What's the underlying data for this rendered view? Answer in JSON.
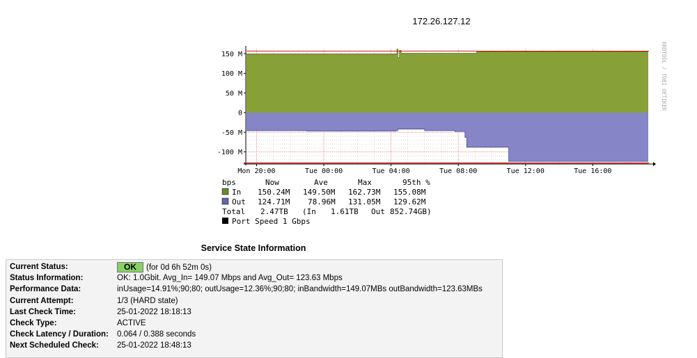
{
  "chart_data": {
    "type": "area",
    "title": "172.26.127.12",
    "watermark": "RRDTOOL / TOBI OETIKER",
    "ylabel": "",
    "y_ticks": [
      150,
      100,
      50,
      0,
      -50,
      -100
    ],
    "y_tick_labels": [
      "150 M",
      "100 M",
      "50 M",
      "0",
      "-50 M",
      "-100 M"
    ],
    "ylim": [
      -130,
      160
    ],
    "x_ticks": [
      "Mon 20:00",
      "Tue 00:00",
      "Tue 04:00",
      "Tue 08:00",
      "Tue 12:00",
      "Tue 16:00"
    ],
    "x_tick_hours": [
      20,
      24,
      28,
      32,
      36,
      40
    ],
    "xlim_hours": [
      19.4,
      43.3
    ],
    "grid": true,
    "colors": {
      "in": "#88a038",
      "out": "#8585c8",
      "max_line": "#cc0000",
      "axis": "#000000"
    },
    "series": [
      {
        "name": "In",
        "x_hours": [
          19.4,
          23.0,
          27.0,
          28.3,
          28.35,
          28.4,
          28.5,
          28.6,
          33.0,
          33.1,
          43.3
        ],
        "values": [
          149,
          149,
          149,
          149,
          162,
          140,
          158,
          151,
          151,
          155,
          155
        ]
      },
      {
        "name": "Out",
        "x_hours": [
          19.4,
          23.0,
          28.3,
          28.4,
          30.0,
          31.8,
          32.4,
          32.5,
          34.0,
          34.9,
          35.0,
          43.3
        ],
        "values": [
          -46,
          -47,
          -46,
          -42,
          -46,
          -48,
          -63,
          -88,
          -88,
          -88,
          -124,
          -124
        ]
      }
    ],
    "legend": {
      "unit": "bps",
      "headers": [
        "Now",
        "Ave",
        "Max",
        "95th %"
      ],
      "rows": [
        {
          "label": "In",
          "color": "#6a8b2f",
          "values": [
            "150.24M",
            "149.50M",
            "162.73M",
            "155.08M"
          ]
        },
        {
          "label": "Out",
          "color": "#6666a8",
          "values": [
            "124.71M",
            "78.96M",
            "131.05M",
            "129.62M"
          ]
        }
      ],
      "total": {
        "label": "Total",
        "value": "2.47TB",
        "in_label": "(In",
        "in_value": "1.61TB",
        "out_label": "Out",
        "out_value": "852.74GB)"
      },
      "port_speed": "Port Speed 1 Gbps"
    }
  },
  "service_state": {
    "title": "Service State Information",
    "rows": [
      {
        "key": "Current Status:",
        "badge": "OK",
        "value": "(for 0d 6h 52m 0s)"
      },
      {
        "key": "Status Information:",
        "value": "OK: 1.0Gbit. Avg_In= 149.07 Mbps and Avg_Out= 123.63 Mbps"
      },
      {
        "key": "Performance Data:",
        "value": "inUsage=14.91%;90;80; outUsage=12.36%;90;80; inBandwidth=149.07MBs outBandwidth=123.63MBs"
      },
      {
        "key": "Current Attempt:",
        "value": "1/3  (HARD state)"
      },
      {
        "key": "Last Check Time:",
        "value": "25-01-2022 18:18:13"
      },
      {
        "key": "Check Type:",
        "value": "ACTIVE"
      },
      {
        "key": "Check Latency / Duration:",
        "value": "0.064 / 0.388 seconds"
      },
      {
        "key": "Next Scheduled Check:",
        "value": "25-01-2022 18:48:13"
      }
    ]
  }
}
